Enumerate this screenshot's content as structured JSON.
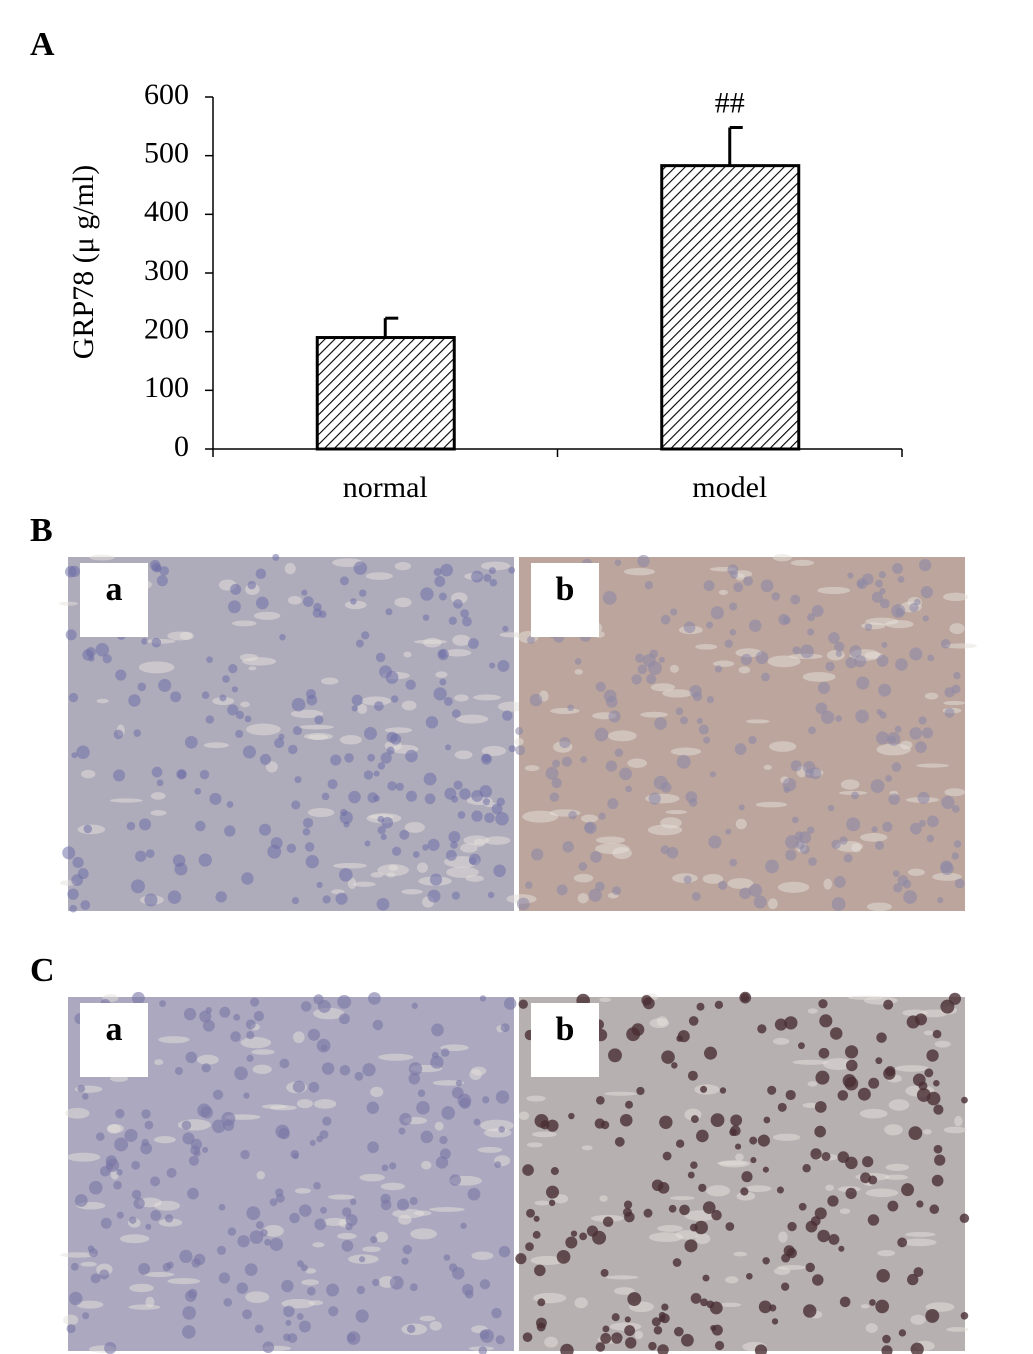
{
  "chart_data": {
    "type": "bar",
    "panel_label": "A",
    "ylabel": "GRP78 (μ g/ml)",
    "categories": [
      "normal",
      "model"
    ],
    "values": [
      190,
      483
    ],
    "errors": [
      33,
      65
    ],
    "color": "#000000",
    "annotations": [
      null,
      "##"
    ],
    "ylim": [
      0,
      600
    ],
    "yticks": [
      0,
      100,
      200,
      300,
      400,
      500,
      600
    ]
  },
  "image_panels": [
    {
      "label": "B",
      "images": [
        "a",
        "b"
      ]
    },
    {
      "label": "C",
      "images": [
        "a",
        "b"
      ]
    }
  ]
}
